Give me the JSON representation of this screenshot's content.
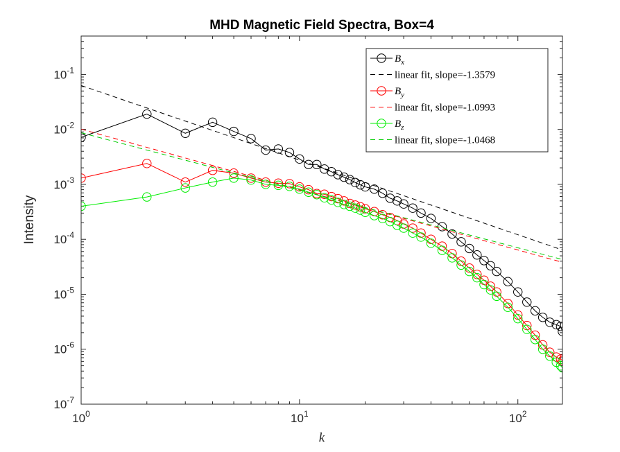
{
  "chart_data": {
    "type": "scatter",
    "title": "MHD Magnetic Field Spectra, Box=4",
    "xlabel": "k",
    "ylabel": "Intensity",
    "xscale": "log",
    "yscale": "log",
    "xlim": [
      1,
      160
    ],
    "ylim": [
      1e-07,
      0.5
    ],
    "grid": false,
    "legend_position": "top-right",
    "x_ticks": [
      {
        "value": 1,
        "base": "10",
        "exp": "0"
      },
      {
        "value": 10,
        "base": "10",
        "exp": "1"
      },
      {
        "value": 100,
        "base": "10",
        "exp": "2"
      }
    ],
    "y_ticks": [
      {
        "value": 1e-07,
        "base": "10",
        "exp": "-7"
      },
      {
        "value": 1e-06,
        "base": "10",
        "exp": "-6"
      },
      {
        "value": 1e-05,
        "base": "10",
        "exp": "-5"
      },
      {
        "value": 0.0001,
        "base": "10",
        "exp": "-4"
      },
      {
        "value": 0.001,
        "base": "10",
        "exp": "-3"
      },
      {
        "value": 0.01,
        "base": "10",
        "exp": "-2"
      },
      {
        "value": 0.1,
        "base": "10",
        "exp": "-1"
      }
    ],
    "series": [
      {
        "name_main": "B",
        "name_sub": "x",
        "kind": "data",
        "color": "#000000",
        "points": [
          [
            1,
            0.0072
          ],
          [
            2,
            0.019
          ],
          [
            3,
            0.0085
          ],
          [
            4,
            0.0135
          ],
          [
            5,
            0.0092
          ],
          [
            6,
            0.0068
          ],
          [
            7,
            0.0042
          ],
          [
            8,
            0.0044
          ],
          [
            9,
            0.0038
          ],
          [
            10,
            0.0029
          ],
          [
            11,
            0.0023
          ],
          [
            12,
            0.0023
          ],
          [
            13,
            0.0019
          ],
          [
            14,
            0.0017
          ],
          [
            15,
            0.0015
          ],
          [
            16,
            0.00135
          ],
          [
            17,
            0.00122
          ],
          [
            18,
            0.00108
          ],
          [
            19,
            0.00098
          ],
          [
            20,
            0.0009
          ],
          [
            22,
            0.00082
          ],
          [
            24,
            0.00069
          ],
          [
            26,
            0.00056
          ],
          [
            28,
            0.0005
          ],
          [
            30,
            0.00044
          ],
          [
            33,
            0.00037
          ],
          [
            36,
            0.0003
          ],
          [
            40,
            0.00024
          ],
          [
            45,
            0.00017
          ],
          [
            50,
            0.000125
          ],
          [
            55,
            9e-05
          ],
          [
            60,
            6.8e-05
          ],
          [
            65,
            5.2e-05
          ],
          [
            70,
            4.1e-05
          ],
          [
            75,
            3.3e-05
          ],
          [
            80,
            2.6e-05
          ],
          [
            90,
            1.7e-05
          ],
          [
            100,
            1.1e-05
          ],
          [
            110,
            7.2e-06
          ],
          [
            120,
            5e-06
          ],
          [
            130,
            3.8e-06
          ],
          [
            140,
            3.1e-06
          ],
          [
            150,
            2.8e-06
          ],
          [
            157,
            2.6e-06
          ],
          [
            160,
            2.1e-06
          ]
        ]
      },
      {
        "name": "linear fit, slope=-1.3579",
        "kind": "fit",
        "color": "#000000",
        "slope": -1.3579,
        "x_range": [
          1,
          160
        ],
        "y_at_1": 0.063
      },
      {
        "name_main": "B",
        "name_sub": "y",
        "kind": "data",
        "color": "#ff0000",
        "points": [
          [
            1,
            0.0013
          ],
          [
            2,
            0.0024
          ],
          [
            3,
            0.0011
          ],
          [
            4,
            0.0018
          ],
          [
            5,
            0.0016
          ],
          [
            6,
            0.0013
          ],
          [
            7,
            0.0011
          ],
          [
            8,
            0.00105
          ],
          [
            9,
            0.00103
          ],
          [
            10,
            0.0009
          ],
          [
            11,
            0.0008
          ],
          [
            12,
            0.00068
          ],
          [
            13,
            0.00066
          ],
          [
            14,
            0.0006
          ],
          [
            15,
            0.00055
          ],
          [
            16,
            0.0005
          ],
          [
            17,
            0.00045
          ],
          [
            18,
            0.00042
          ],
          [
            19,
            0.00039
          ],
          [
            20,
            0.00036
          ],
          [
            22,
            0.00032
          ],
          [
            24,
            0.00028
          ],
          [
            26,
            0.00025
          ],
          [
            28,
            0.00022
          ],
          [
            30,
            0.00019
          ],
          [
            33,
            0.00016
          ],
          [
            36,
            0.00013
          ],
          [
            40,
            0.0001
          ],
          [
            45,
            7.5e-05
          ],
          [
            50,
            5.5e-05
          ],
          [
            55,
            4e-05
          ],
          [
            60,
            3e-05
          ],
          [
            65,
            2.3e-05
          ],
          [
            70,
            1.8e-05
          ],
          [
            75,
            1.4e-05
          ],
          [
            80,
            1.1e-05
          ],
          [
            90,
            6.8e-06
          ],
          [
            100,
            4.2e-06
          ],
          [
            110,
            2.7e-06
          ],
          [
            120,
            1.8e-06
          ],
          [
            130,
            1.2e-06
          ],
          [
            140,
            8.8e-07
          ],
          [
            150,
            7.2e-07
          ],
          [
            157,
            6.6e-07
          ],
          [
            160,
            6.2e-07
          ]
        ]
      },
      {
        "name": "linear fit, slope=-1.0993",
        "kind": "fit",
        "color": "#ff0000",
        "slope": -1.0993,
        "x_range": [
          1,
          160
        ],
        "y_at_1": 0.0101
      },
      {
        "name_main": "B",
        "name_sub": "z",
        "kind": "data",
        "color": "#00ee00",
        "points": [
          [
            1,
            0.0004
          ],
          [
            2,
            0.00059
          ],
          [
            3,
            0.00086
          ],
          [
            4,
            0.0011
          ],
          [
            5,
            0.0013
          ],
          [
            6,
            0.0012
          ],
          [
            7,
            0.001
          ],
          [
            8,
            0.00096
          ],
          [
            9,
            0.00092
          ],
          [
            10,
            0.00082
          ],
          [
            11,
            0.00072
          ],
          [
            12,
            0.00065
          ],
          [
            13,
            0.00057
          ],
          [
            14,
            0.00052
          ],
          [
            15,
            0.00047
          ],
          [
            16,
            0.00043
          ],
          [
            17,
            0.0004
          ],
          [
            18,
            0.00037
          ],
          [
            19,
            0.00034
          ],
          [
            20,
            0.00031
          ],
          [
            22,
            0.00027
          ],
          [
            24,
            0.00024
          ],
          [
            26,
            0.00021
          ],
          [
            28,
            0.00018
          ],
          [
            30,
            0.00016
          ],
          [
            33,
            0.00013
          ],
          [
            36,
            0.00011
          ],
          [
            40,
            8.5e-05
          ],
          [
            45,
            6.3e-05
          ],
          [
            50,
            4.6e-05
          ],
          [
            55,
            3.4e-05
          ],
          [
            60,
            2.6e-05
          ],
          [
            65,
            2e-05
          ],
          [
            70,
            1.5e-05
          ],
          [
            75,
            1.2e-05
          ],
          [
            80,
            9.2e-06
          ],
          [
            90,
            5.8e-06
          ],
          [
            100,
            3.6e-06
          ],
          [
            110,
            2.3e-06
          ],
          [
            120,
            1.5e-06
          ],
          [
            130,
            1e-06
          ],
          [
            140,
            7.5e-07
          ],
          [
            150,
            5.8e-07
          ],
          [
            157,
            5e-07
          ],
          [
            160,
            4.6e-07
          ]
        ]
      },
      {
        "name": "linear fit, slope=-1.0468",
        "kind": "fit",
        "color": "#00cc00",
        "slope": -1.0468,
        "x_range": [
          1,
          160
        ],
        "y_at_1": 0.0087
      }
    ]
  }
}
